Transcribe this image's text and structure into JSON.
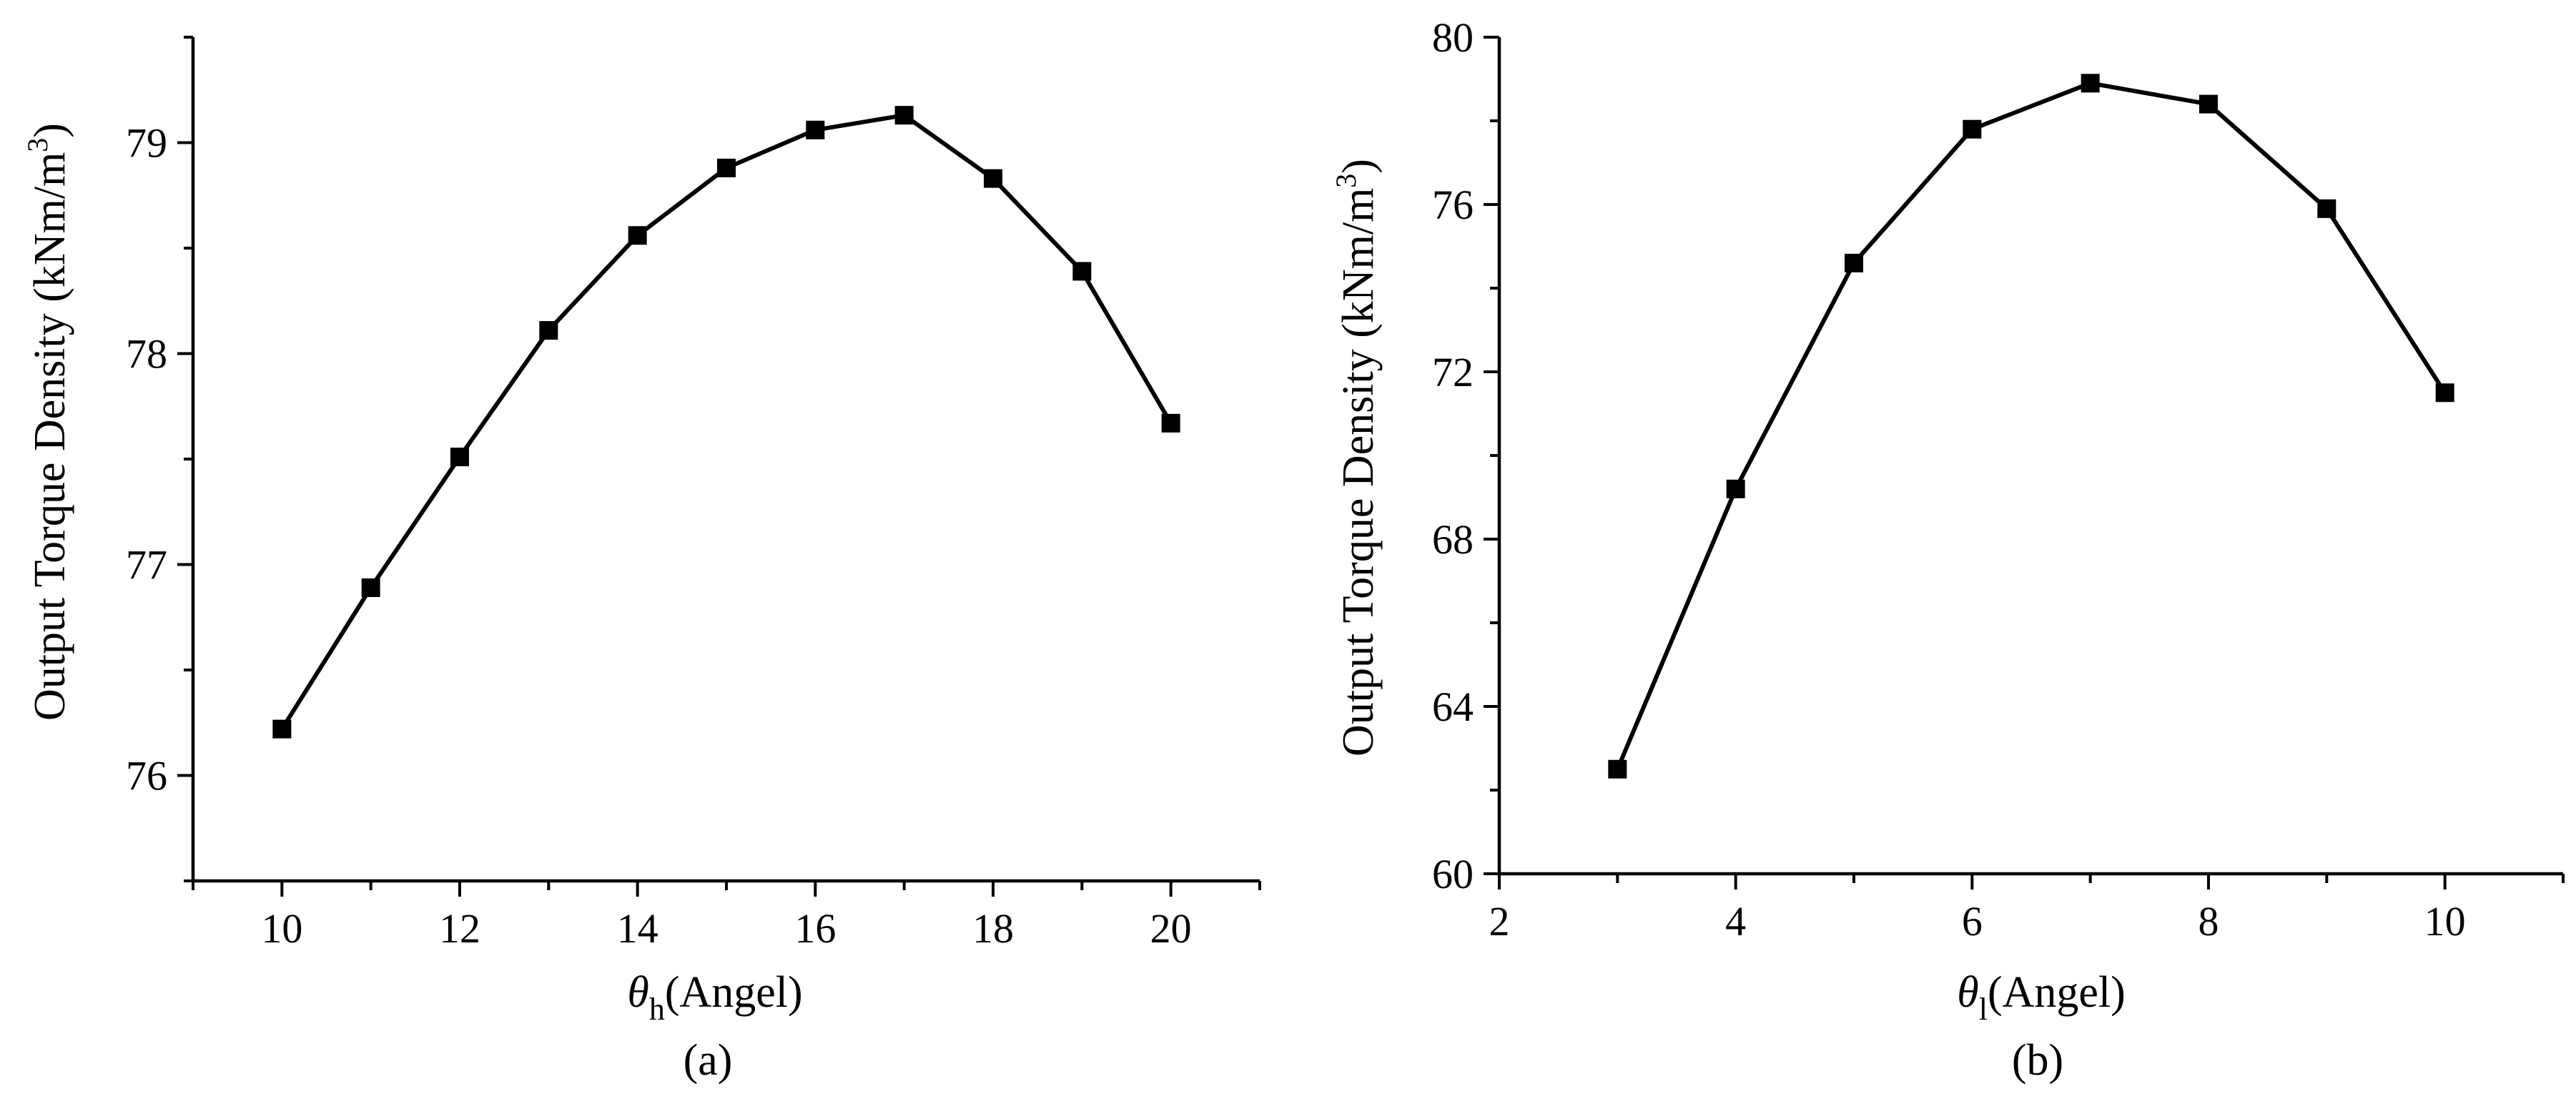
{
  "chart_data": [
    {
      "type": "line",
      "panel_label": "(a)",
      "ylabel": "Output Torque Density (kNm/m",
      "ylabel_sup": "3",
      "ylabel_close": ")",
      "xlabel_symbol": "θ",
      "xlabel_sub": "h",
      "xlabel_text": "(Angel)",
      "xlim": [
        9,
        21
      ],
      "ylim": [
        75.5,
        79.5
      ],
      "xticks": [
        10,
        12,
        14,
        16,
        18,
        20
      ],
      "yticks": [
        76,
        77,
        78,
        79
      ],
      "grid": false,
      "series": [
        {
          "name": "Output Torque Density",
          "x": [
            10,
            11,
            12,
            13,
            14,
            15,
            16,
            17,
            18,
            19,
            20
          ],
          "values": [
            76.22,
            76.89,
            77.51,
            78.11,
            78.56,
            78.88,
            79.06,
            79.13,
            78.83,
            78.39,
            77.67
          ]
        }
      ]
    },
    {
      "type": "line",
      "panel_label": "(b)",
      "ylabel": "Output Torque Density (kNm/m",
      "ylabel_sup": "3",
      "ylabel_close": ")",
      "xlabel_symbol": "θ",
      "xlabel_sub": "l",
      "xlabel_text": "(Angel)",
      "xlim": [
        2,
        11
      ],
      "ylim": [
        60,
        80
      ],
      "xticks": [
        2,
        4,
        6,
        8,
        10
      ],
      "yticks": [
        60,
        64,
        68,
        72,
        76,
        80
      ],
      "grid": false,
      "series": [
        {
          "name": "Output Torque Density",
          "x": [
            3,
            4,
            5,
            6,
            7,
            8,
            9,
            10
          ],
          "values": [
            62.5,
            69.2,
            74.6,
            77.8,
            78.9,
            78.4,
            75.9,
            71.5
          ]
        }
      ]
    }
  ]
}
